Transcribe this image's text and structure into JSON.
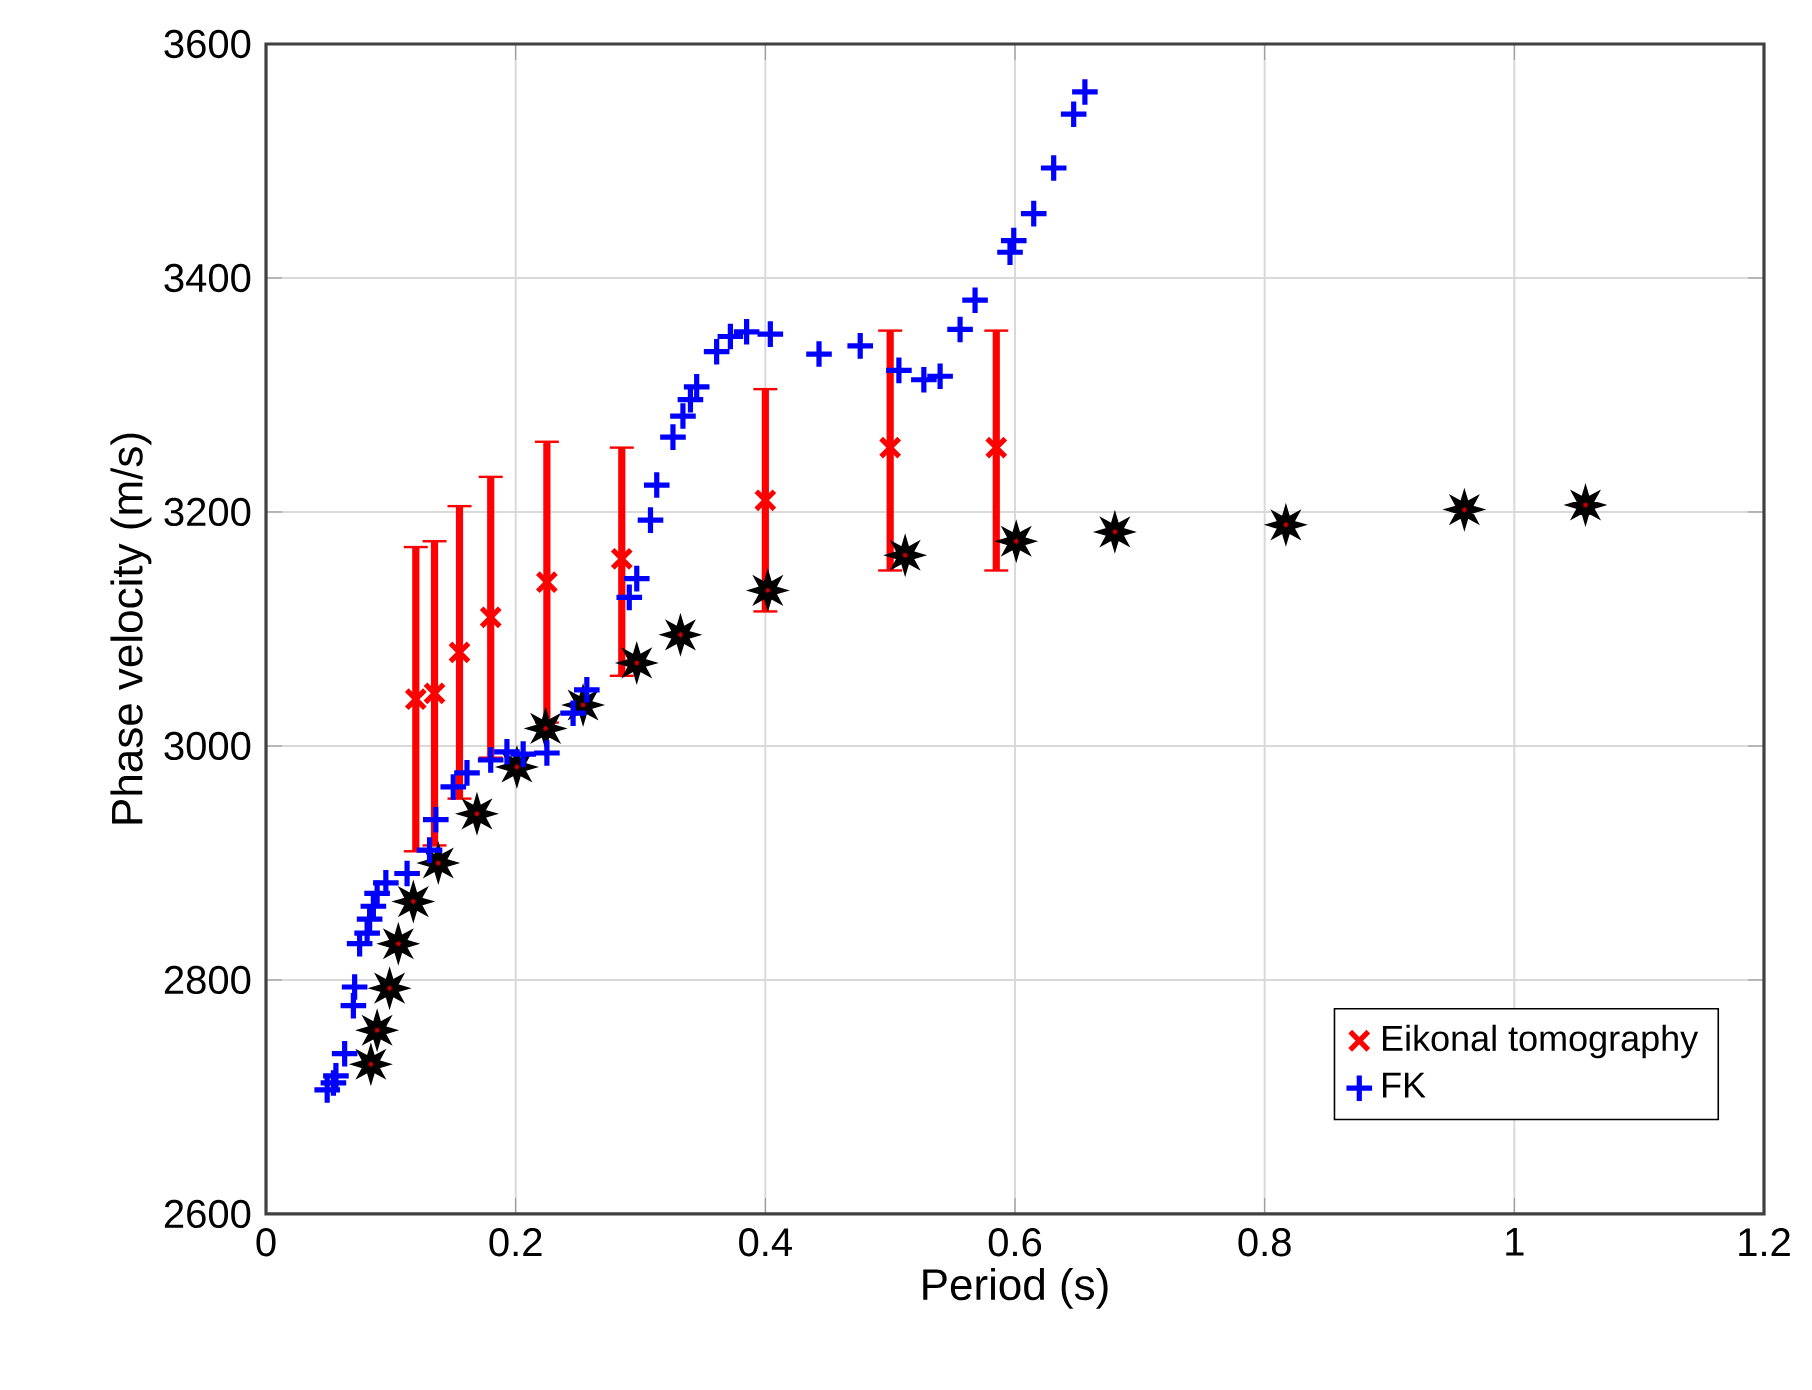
{
  "chart_data": {
    "type": "scatter",
    "xlabel": "Period (s)",
    "ylabel": "Phase velocity (m/s)",
    "xlim": [
      0,
      1.2
    ],
    "ylim": [
      2600,
      3600
    ],
    "xticks": [
      0,
      0.2,
      0.4,
      0.6,
      0.8,
      1,
      1.2
    ],
    "yticks": [
      2600,
      2800,
      3000,
      3200,
      3400,
      3600
    ],
    "grid": true,
    "legend": "bottom right",
    "series": [
      {
        "name": "Eikonal tomography",
        "color": "#ff0000",
        "marker": "cross",
        "x": [
          0.12,
          0.135,
          0.155,
          0.18,
          0.225,
          0.285,
          0.4,
          0.5,
          0.585
        ],
        "values": [
          3040,
          3045,
          3080,
          3110,
          3140,
          3160,
          3210,
          3255,
          3255
        ],
        "errors": [
          [
            2910,
            3170
          ],
          [
            2915,
            3175
          ],
          [
            2955,
            3205
          ],
          [
            2990,
            3230
          ],
          [
            3020,
            3260
          ],
          [
            3060,
            3255
          ],
          [
            3115,
            3305
          ],
          [
            3150,
            3355
          ],
          [
            3150,
            3355
          ]
        ]
      },
      {
        "color": "#000000",
        "marker": "star",
        "x": [
          0.084,
          0.089,
          0.099,
          0.106,
          0.118,
          0.138,
          0.169,
          0.201,
          0.224,
          0.254,
          0.297,
          0.332,
          0.402,
          0.512,
          0.601,
          0.68,
          0.817,
          0.96,
          1.057
        ],
        "values": [
          2728,
          2757,
          2793,
          2831,
          2867,
          2900,
          2942,
          2982,
          3015,
          3035,
          3071,
          3095,
          3133,
          3163,
          3175,
          3183,
          3189,
          3202,
          3206
        ]
      },
      {
        "name": "FK",
        "color": "#0000ff",
        "marker": "plus",
        "x": [
          0.049,
          0.054,
          0.056,
          0.063,
          0.07,
          0.071,
          0.075,
          0.081,
          0.083,
          0.086,
          0.089,
          0.096,
          0.113,
          0.131,
          0.136,
          0.15,
          0.161,
          0.18,
          0.193,
          0.206,
          0.225,
          0.246,
          0.257,
          0.291,
          0.297,
          0.308,
          0.313,
          0.326,
          0.334,
          0.34,
          0.345,
          0.361,
          0.372,
          0.385,
          0.404,
          0.443,
          0.476,
          0.507,
          0.527,
          0.54,
          0.556,
          0.568,
          0.596,
          0.599,
          0.615,
          0.631,
          0.647,
          0.656
        ],
        "values": [
          2706,
          2712,
          2718,
          2737,
          2778,
          2794,
          2831,
          2840,
          2852,
          2863,
          2874,
          2883,
          2891,
          2911,
          2937,
          2965,
          2977,
          2988,
          2995,
          2993,
          2994,
          3028,
          3048,
          3127,
          3143,
          3193,
          3223,
          3264,
          3282,
          3296,
          3307,
          3337,
          3350,
          3354,
          3352,
          3335,
          3342,
          3321,
          3313,
          3316,
          3356,
          3381,
          3422,
          3432,
          3455,
          3494,
          3540,
          3559
        ]
      }
    ]
  }
}
